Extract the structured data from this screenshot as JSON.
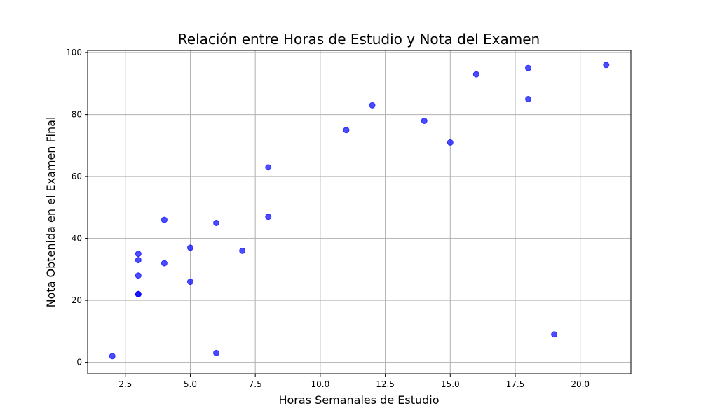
{
  "chart_data": {
    "type": "scatter",
    "title": "Relación entre Horas de Estudio y Nota del Examen",
    "xlabel": "Horas Semanales de Estudio",
    "ylabel": "Nota Obtenida en el Examen Final",
    "xlim": [
      1.05,
      21.95
    ],
    "ylim": [
      -3.7,
      100.7
    ],
    "xticks": [
      2.5,
      5.0,
      7.5,
      10.0,
      12.5,
      15.0,
      17.5,
      20.0
    ],
    "xtick_labels": [
      "2.5",
      "5.0",
      "7.5",
      "10.0",
      "12.5",
      "15.0",
      "17.5",
      "20.0"
    ],
    "yticks": [
      0,
      20,
      40,
      60,
      80,
      100
    ],
    "ytick_labels": [
      "0",
      "20",
      "40",
      "60",
      "80",
      "100"
    ],
    "grid": true,
    "marker_color": "#0000ff",
    "points": [
      {
        "x": 2,
        "y": 2
      },
      {
        "x": 3,
        "y": 35
      },
      {
        "x": 3,
        "y": 33
      },
      {
        "x": 3,
        "y": 28
      },
      {
        "x": 3,
        "y": 22
      },
      {
        "x": 3,
        "y": 22
      },
      {
        "x": 4,
        "y": 46
      },
      {
        "x": 4,
        "y": 32
      },
      {
        "x": 5,
        "y": 37
      },
      {
        "x": 5,
        "y": 26
      },
      {
        "x": 6,
        "y": 45
      },
      {
        "x": 6,
        "y": 3
      },
      {
        "x": 7,
        "y": 36
      },
      {
        "x": 8,
        "y": 63
      },
      {
        "x": 8,
        "y": 47
      },
      {
        "x": 11,
        "y": 75
      },
      {
        "x": 12,
        "y": 83
      },
      {
        "x": 14,
        "y": 78
      },
      {
        "x": 15,
        "y": 71
      },
      {
        "x": 16,
        "y": 93
      },
      {
        "x": 18,
        "y": 95
      },
      {
        "x": 18,
        "y": 85
      },
      {
        "x": 19,
        "y": 9
      },
      {
        "x": 21,
        "y": 96
      }
    ]
  }
}
